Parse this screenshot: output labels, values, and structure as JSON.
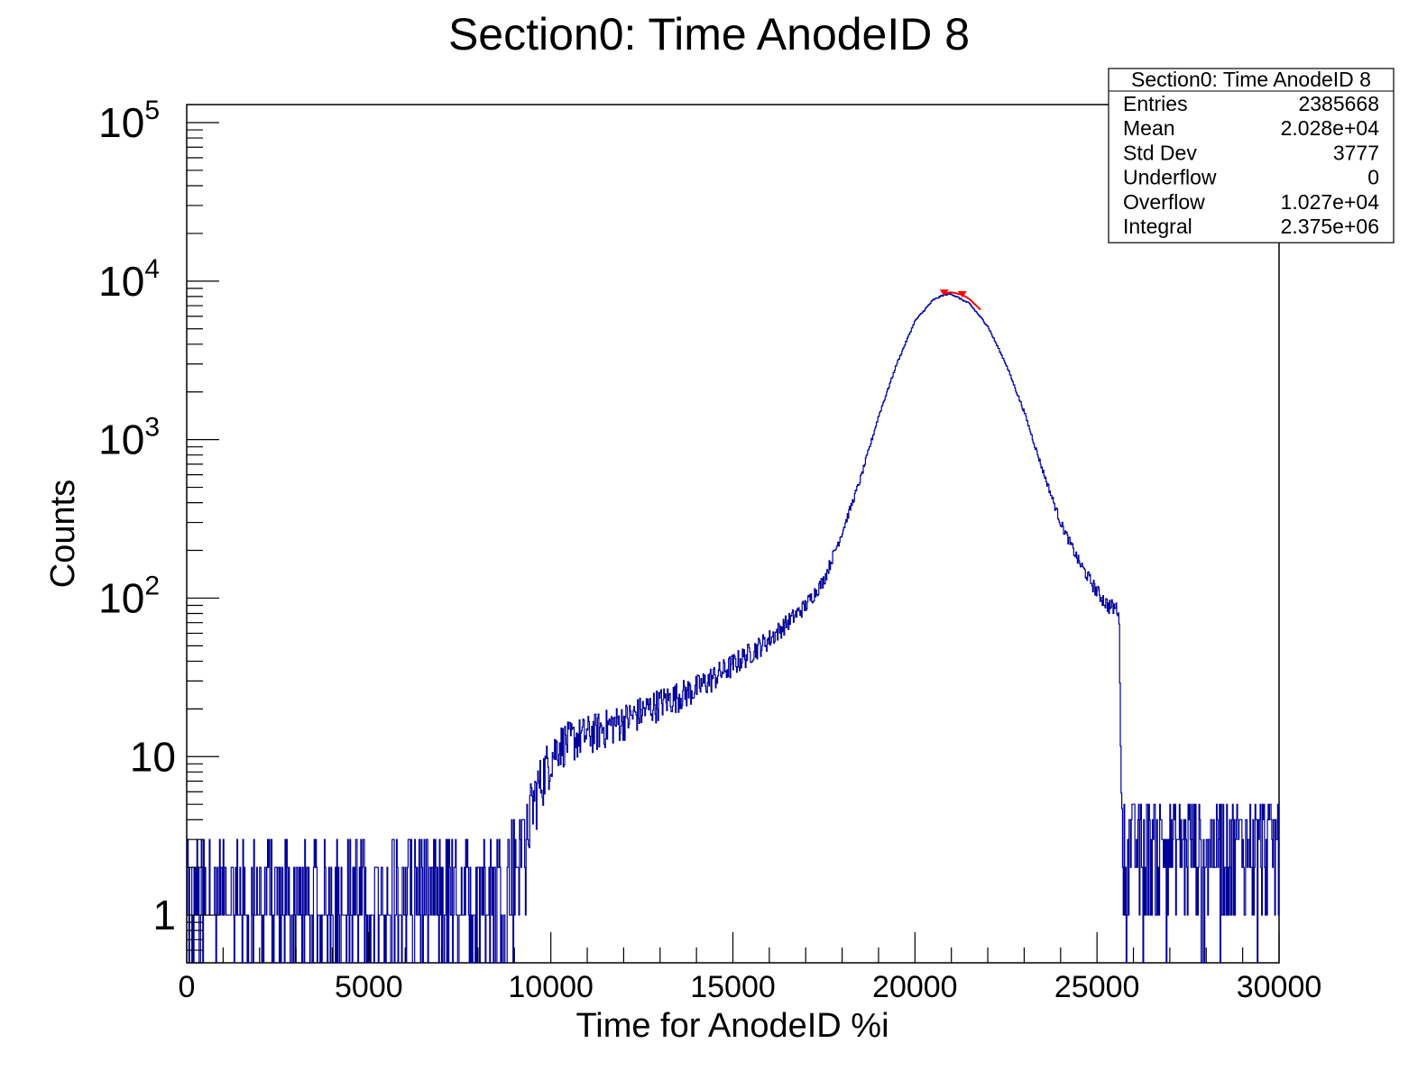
{
  "chart_data": {
    "type": "histogram",
    "title": "Section0: Time AnodeID 8",
    "xlabel": "Time for AnodeID %i",
    "ylabel": "Counts",
    "xlim": [
      0,
      30000
    ],
    "ylim": [
      0.5,
      130000
    ],
    "yscale": "log",
    "grid": false,
    "x_ticks": [
      "0",
      "5000",
      "10000",
      "15000",
      "20000",
      "25000",
      "30000"
    ],
    "y_ticks": [
      {
        "base": "1",
        "exp": ""
      },
      {
        "base": "10",
        "exp": ""
      },
      {
        "base": "10",
        "exp": "2"
      },
      {
        "base": "10",
        "exp": "3"
      },
      {
        "base": "10",
        "exp": "4"
      },
      {
        "base": "10",
        "exp": "5"
      }
    ],
    "series": [
      {
        "color": "#000099",
        "description": "histogram counts per bin (approximate envelope)",
        "x": [
          0,
          500,
          1000,
          2000,
          3000,
          4000,
          5000,
          6000,
          7000,
          8000,
          8500,
          9000,
          9300,
          9600,
          9900,
          10200,
          11000,
          12000,
          13000,
          14000,
          15000,
          16000,
          17000,
          17500,
          18000,
          18500,
          19000,
          19500,
          20000,
          20500,
          20800,
          21000,
          21500,
          22000,
          22500,
          23000,
          23500,
          24000,
          24500,
          25000,
          25300,
          25600,
          25700,
          25800,
          26500,
          27500,
          28500,
          29500,
          30000
        ],
        "y": [
          1.2,
          1.4,
          1.4,
          1.4,
          1.4,
          1.4,
          1.4,
          1.5,
          1.5,
          1.6,
          1.7,
          2.2,
          3.5,
          6,
          9,
          12,
          14,
          17,
          22,
          27,
          38,
          55,
          90,
          130,
          260,
          560,
          1400,
          3000,
          5600,
          7600,
          8200,
          8300,
          7200,
          5200,
          3000,
          1500,
          650,
          300,
          170,
          110,
          90,
          85,
          3,
          3,
          3,
          3,
          3,
          3,
          3
        ]
      },
      {
        "color": "#ff0000",
        "description": "fit curve near peak",
        "x": [
          20800,
          21000,
          21300,
          21500,
          21800
        ],
        "y": [
          8400,
          8500,
          8200,
          7700,
          6600
        ]
      }
    ],
    "stats_box": {
      "title": "Section0: Time AnodeID 8",
      "rows": [
        {
          "label": "Entries",
          "value": "2385668"
        },
        {
          "label": "Mean",
          "value": "2.028e+04"
        },
        {
          "label": "Std Dev",
          "value": "3777"
        },
        {
          "label": "Underflow",
          "value": "0"
        },
        {
          "label": "Overflow",
          "value": "1.027e+04"
        },
        {
          "label": "Integral",
          "value": "2.375e+06"
        }
      ]
    }
  }
}
